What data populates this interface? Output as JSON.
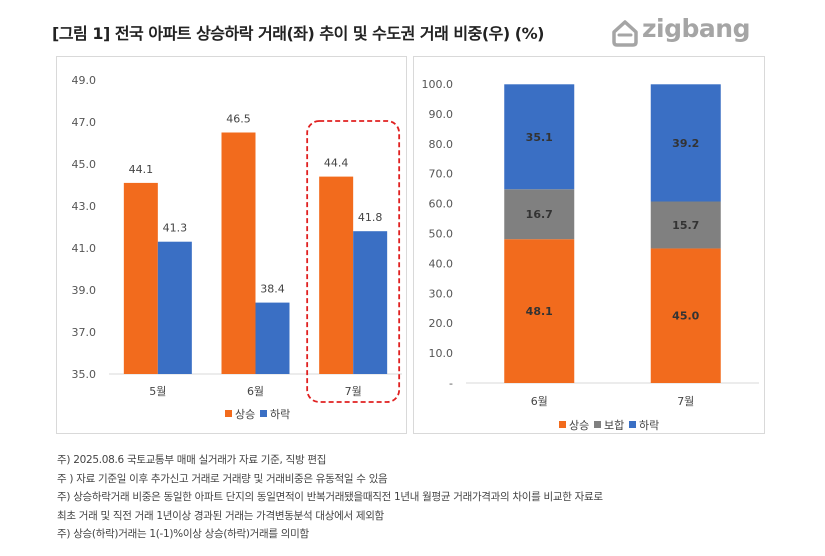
{
  "title": "[그림 1] 전국 아파트 상승하락 거래(좌) 추이 및 수도권 거래 비중(우) (%)",
  "logo": {
    "text": "zigbang",
    "icon": "zigbang-house-icon"
  },
  "colors": {
    "up": "#F26B1D",
    "down": "#3A6FC4",
    "hold": "#808080",
    "highlight": "#E02020"
  },
  "chart_data": [
    {
      "type": "bar",
      "categories": [
        "5월",
        "6월",
        "7월"
      ],
      "series": [
        {
          "name": "상승",
          "values": [
            44.1,
            46.5,
            44.4
          ]
        },
        {
          "name": "하락",
          "values": [
            41.3,
            38.4,
            41.8
          ]
        }
      ],
      "ylim": [
        35.0,
        49.0
      ],
      "yticks": [
        "35.0",
        "37.0",
        "39.0",
        "41.0",
        "43.0",
        "45.0",
        "47.0",
        "49.0"
      ],
      "data_labels": [
        [
          "44.1",
          "46.5",
          "44.4"
        ],
        [
          "41.3",
          "38.4",
          "41.8"
        ]
      ],
      "highlighted_category": "7월",
      "legend": "bottom"
    },
    {
      "type": "bar",
      "stacked": true,
      "categories": [
        "6월",
        "7월"
      ],
      "series": [
        {
          "name": "상승",
          "values": [
            48.1,
            45.0
          ]
        },
        {
          "name": "보합",
          "values": [
            16.7,
            15.7
          ]
        },
        {
          "name": "하락",
          "values": [
            35.1,
            39.2
          ]
        }
      ],
      "ylim": [
        0,
        100
      ],
      "yticks": [
        "-",
        "10.0",
        "20.0",
        "30.0",
        "40.0",
        "50.0",
        "60.0",
        "70.0",
        "80.0",
        "90.0",
        "100.0"
      ],
      "data_labels": [
        [
          "48.1",
          "45.0"
        ],
        [
          "16.7",
          "15.7"
        ],
        [
          "35.1",
          "39.2"
        ]
      ],
      "legend": "bottom"
    }
  ],
  "notes": [
    "주) 2025.08.6   국토교통부 매매 실거래가 자료 기준, 직방 편집",
    "주 ) 자료 기준일 이후 추가신고 거래로 거래량 및 거래비중은 유동적일 수 있음",
    "주) 상승하락거래 비중은 동일한 아파트 단지의 동일면적이 반복거래됐을때직전 1년내 월평균 거래가격과의 차이를 비교한 자료로",
    "최초 거래 및 직전 거래 1년이상 경과된 거래는 가격변동분석 대상에서 제외함",
    "주) 상승(하락)거래는 1(-1)%이상 상승(하락)거래를 의미함"
  ]
}
